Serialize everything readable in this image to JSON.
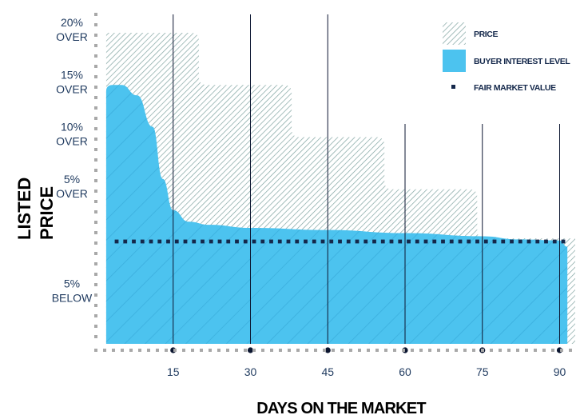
{
  "chart_data": {
    "type": "area",
    "xlabel": "DAYS ON THE MARKET",
    "ylabel": [
      "LISTED",
      "PRICE"
    ],
    "x_ticks": [
      "15",
      "30",
      "45",
      "60",
      "75",
      "90"
    ],
    "y_ticks": [
      [
        "20%",
        "OVER"
      ],
      [
        "15%",
        "OVER"
      ],
      [
        "10%",
        "OVER"
      ],
      [
        "5%",
        "OVER"
      ],
      [
        "5%",
        "BELOW"
      ]
    ],
    "legend_position": "top-right",
    "series": [
      {
        "name": "PRICE",
        "style": "hatched",
        "color": "#7fa3a0",
        "points": [
          [
            2,
            20
          ],
          [
            20,
            20
          ],
          [
            20,
            15
          ],
          [
            38,
            15
          ],
          [
            38,
            10
          ],
          [
            56,
            10
          ],
          [
            56,
            5
          ],
          [
            74,
            5
          ],
          [
            74,
            0.3
          ],
          [
            90,
            0.3
          ]
        ]
      },
      {
        "name": "BUYER INTEREST LEVEL",
        "style": "filled",
        "color": "#4cc3ef",
        "points": [
          [
            2,
            15
          ],
          [
            5,
            15
          ],
          [
            8,
            14
          ],
          [
            11,
            11
          ],
          [
            13,
            6
          ],
          [
            15,
            3
          ],
          [
            18,
            1.9
          ],
          [
            22,
            1.6
          ],
          [
            30,
            1.3
          ],
          [
            45,
            1.1
          ],
          [
            60,
            0.8
          ],
          [
            75,
            0.5
          ],
          [
            82,
            0.2
          ],
          [
            90,
            0.1
          ],
          [
            91.5,
            -0.5
          ]
        ]
      },
      {
        "name": "FAIR MARKET VALUE",
        "style": "dotted-line",
        "color": "#14284b",
        "value": 0
      }
    ]
  },
  "colors": {
    "text": "#1f3a5f",
    "axis_dots": "#a8a8a8",
    "gridline": "#0b1530"
  }
}
